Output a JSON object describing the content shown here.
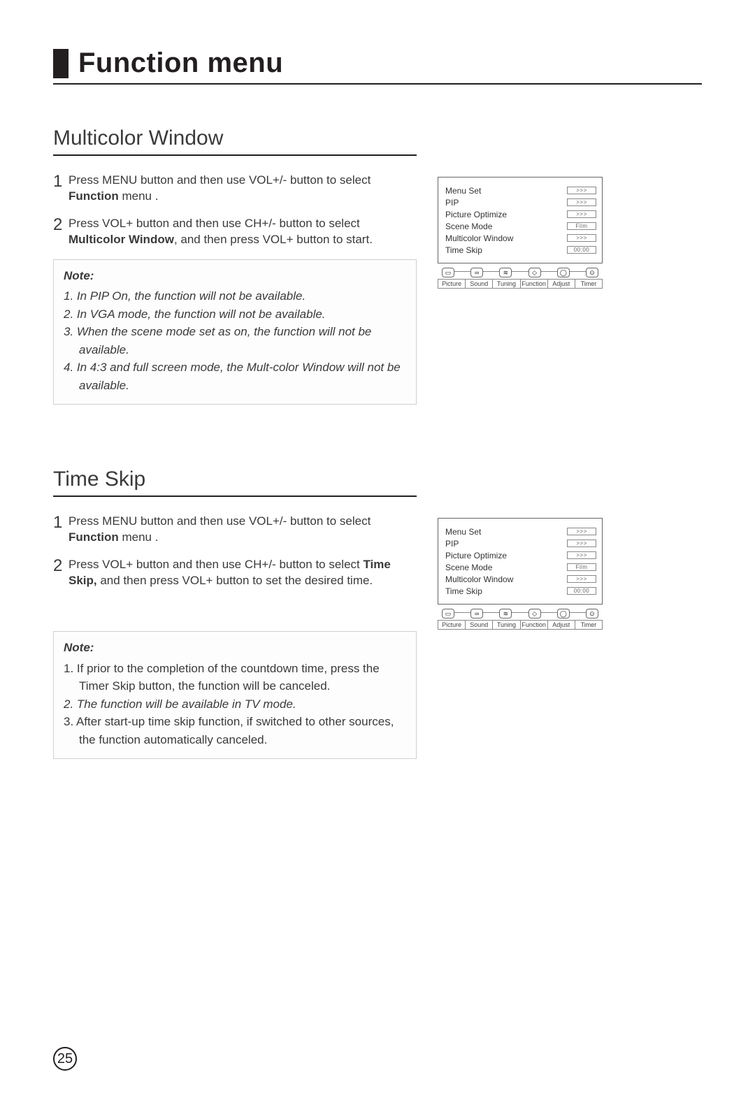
{
  "page_title": "Function menu",
  "page_number": "25",
  "colors": {
    "text": "#231f20",
    "rule": "#231f20",
    "box_border": "#d0d0d0"
  },
  "osd": {
    "items": [
      {
        "label": "Menu Set",
        "value": ">>>"
      },
      {
        "label": "PIP",
        "value": ">>>"
      },
      {
        "label": "Picture Optimize",
        "value": ">>>"
      },
      {
        "label": "Scene Mode",
        "value": "Film"
      },
      {
        "label": "Multicolor Window",
        "value": ">>>"
      },
      {
        "label": "Time Skip",
        "value": "00:00"
      }
    ],
    "tabs": [
      "Picture",
      "Sound",
      "Tuning",
      "Function",
      "Adjust",
      "Timer"
    ],
    "icons": [
      "tv-icon",
      "sound-icon",
      "tuning-icon",
      "function-icon",
      "adjust-icon",
      "timer-icon"
    ]
  },
  "sections": {
    "multicolor": {
      "heading": "Multicolor Window",
      "step1_pre": "Press MENU button and then use VOL+/- button to select ",
      "step1_bold": "Function",
      "step1_post": " menu .",
      "step2_pre": "Press VOL+ button and then use CH+/- button to select ",
      "step2_bold": "Multicolor Window",
      "step2_post": ", and then press VOL+ button to start.",
      "note_label": "Note:",
      "notes": [
        "1. In PIP On, the function will not be available.",
        "2. In VGA mode, the function will not be available.",
        "3. When the scene mode set as on, the function will not be available.",
        "4. In 4:3 and full screen mode, the Mult-color Window will not be available."
      ]
    },
    "timeskip": {
      "heading": "Time Skip",
      "step1_pre": "Press MENU button and then use VOL+/- button to select ",
      "step1_bold": "Function",
      "step1_post": " menu .",
      "step2_pre": "Press VOL+ button and then use CH+/- button to select ",
      "step2_bold": "Time Skip,",
      "step2_post": " and then press VOL+ button to set the desired time.",
      "note_label": "Note:",
      "notes": [
        {
          "text": "1. If prior to the completion of the countdown time, press the Timer Skip button, the function will be canceled.",
          "italic": false
        },
        {
          "text": "2. The function will be available in TV mode.",
          "italic": true
        },
        {
          "text": "3. After start-up time skip function, if switched to other sources, the function automatically canceled.",
          "italic": false
        }
      ]
    }
  }
}
